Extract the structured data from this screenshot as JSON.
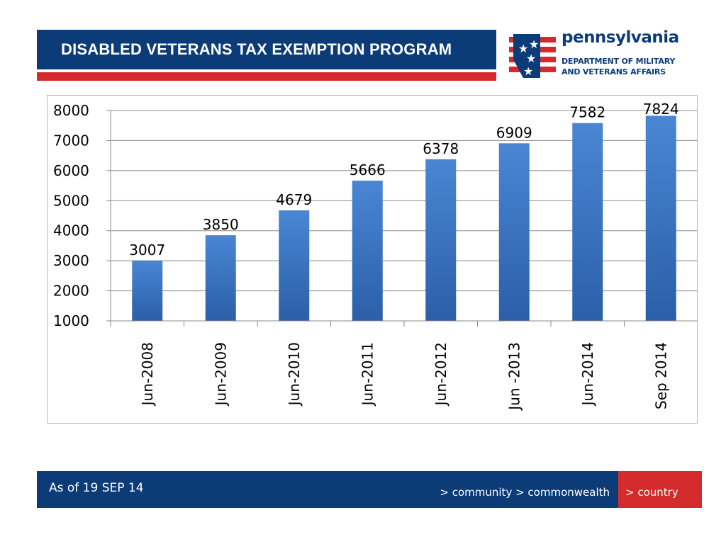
{
  "header": {
    "title": "DISABLED VETERANS TAX EXEMPTION PROGRAM"
  },
  "logo": {
    "name": "pennsylvania",
    "line1": "DEPARTMENT OF MILITARY",
    "line2": "AND VETERANS AFFAIRS"
  },
  "footer": {
    "date": "As of 19 SEP 14",
    "nav": "> community > commonwealth",
    "nav_accent": "> country"
  },
  "colors": {
    "navy": "#0c3c78",
    "red": "#d32b2b",
    "bar_top": "#4a86d4",
    "bar_bottom": "#2b5fa8"
  },
  "chart_data": {
    "type": "bar",
    "title": "",
    "xlabel": "",
    "ylabel": "",
    "categories": [
      "Jun-2008",
      "Jun-2009",
      "Jun-2010",
      "Jun-2011",
      "Jun-2012",
      "Jun -2013",
      "Jun-2014",
      "Sep 2014"
    ],
    "values": [
      3007,
      3850,
      4679,
      5666,
      6378,
      6909,
      7582,
      7824
    ],
    "ylim": [
      1000,
      8000
    ],
    "yticks": [
      "1000",
      "2000",
      "3000",
      "4000",
      "5000",
      "6000",
      "7000",
      "8000"
    ],
    "grid": true,
    "data_labels": true
  }
}
